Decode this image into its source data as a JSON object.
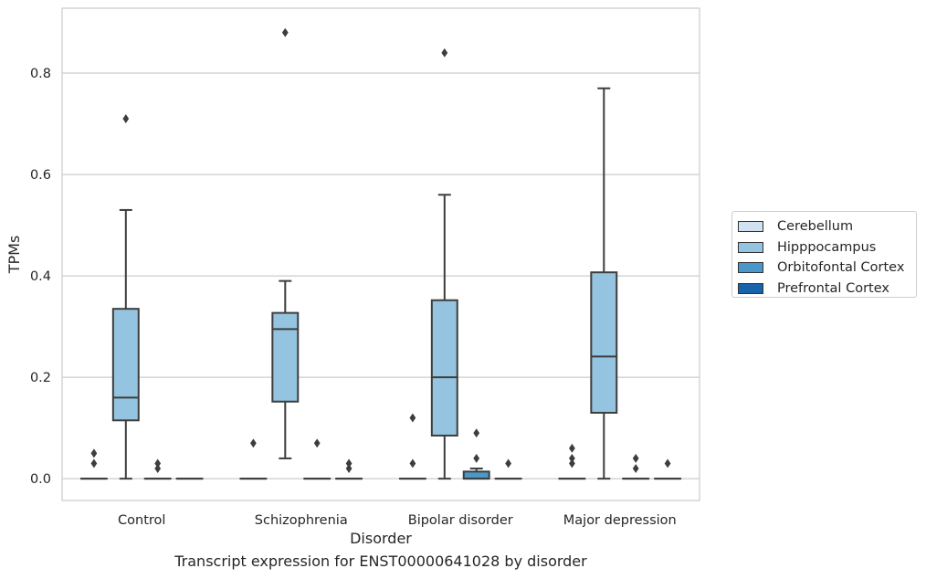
{
  "chart_data": {
    "type": "box",
    "xlabel": "Disorder",
    "ylabel": "TPMs",
    "categories": [
      "Control",
      "Schizophrenia",
      "Bipolar disorder",
      "Major depression"
    ],
    "ylim": [
      -0.043,
      0.928
    ],
    "yticks": [
      0.0,
      0.2,
      0.4,
      0.6,
      0.8
    ],
    "ytick_labels": [
      "0.0",
      "0.2",
      "0.4",
      "0.6",
      "0.8"
    ],
    "grid": "horizontal",
    "legend_position": "right",
    "series": [
      {
        "name": "Cerebellum",
        "color": "#d0e1f2",
        "boxes": [
          {
            "q1": 0,
            "median": 0,
            "q3": 0,
            "whisker_low": 0,
            "whisker_high": 0,
            "outliers": [
              0.05,
              0.03
            ]
          },
          {
            "q1": 0,
            "median": 0,
            "q3": 0,
            "whisker_low": 0,
            "whisker_high": 0,
            "outliers": [
              0.07
            ]
          },
          {
            "q1": 0,
            "median": 0,
            "q3": 0,
            "whisker_low": 0,
            "whisker_high": 0,
            "outliers": [
              0.12,
              0.03
            ]
          },
          {
            "q1": 0,
            "median": 0,
            "q3": 0,
            "whisker_low": 0,
            "whisker_high": 0,
            "outliers": [
              0.06,
              0.04,
              0.03
            ]
          }
        ]
      },
      {
        "name": "Hipppocampus",
        "color": "#94c4df",
        "boxes": [
          {
            "q1": 0.115,
            "median": 0.16,
            "q3": 0.335,
            "whisker_low": 0.0,
            "whisker_high": 0.53,
            "outliers": [
              0.71
            ]
          },
          {
            "q1": 0.152,
            "median": 0.295,
            "q3": 0.327,
            "whisker_low": 0.04,
            "whisker_high": 0.39,
            "outliers": [
              0.88
            ]
          },
          {
            "q1": 0.085,
            "median": 0.2,
            "q3": 0.352,
            "whisker_low": 0.0,
            "whisker_high": 0.56,
            "outliers": [
              0.84
            ]
          },
          {
            "q1": 0.13,
            "median": 0.241,
            "q3": 0.407,
            "whisker_low": 0.0,
            "whisker_high": 0.77,
            "outliers": []
          }
        ]
      },
      {
        "name": "Orbitofontal Cortex",
        "color": "#4a98c9",
        "boxes": [
          {
            "q1": 0,
            "median": 0,
            "q3": 0,
            "whisker_low": 0,
            "whisker_high": 0,
            "outliers": [
              0.03,
              0.02
            ]
          },
          {
            "q1": 0,
            "median": 0,
            "q3": 0,
            "whisker_low": 0,
            "whisker_high": 0,
            "outliers": [
              0.07
            ]
          },
          {
            "q1": 0.0,
            "median": 0.0,
            "q3": 0.014,
            "whisker_low": 0.0,
            "whisker_high": 0.02,
            "outliers": [
              0.09,
              0.04
            ]
          },
          {
            "q1": 0,
            "median": 0,
            "q3": 0,
            "whisker_low": 0,
            "whisker_high": 0,
            "outliers": [
              0.04,
              0.02
            ]
          }
        ]
      },
      {
        "name": "Prefrontal Cortex",
        "color": "#1764ab",
        "boxes": [
          {
            "q1": 0,
            "median": 0,
            "q3": 0,
            "whisker_low": 0,
            "whisker_high": 0,
            "outliers": []
          },
          {
            "q1": 0,
            "median": 0,
            "q3": 0,
            "whisker_low": 0,
            "whisker_high": 0,
            "outliers": [
              0.03,
              0.02
            ]
          },
          {
            "q1": 0,
            "median": 0,
            "q3": 0,
            "whisker_low": 0,
            "whisker_high": 0,
            "outliers": [
              0.03
            ]
          },
          {
            "q1": 0,
            "median": 0,
            "q3": 0,
            "whisker_low": 0,
            "whisker_high": 0,
            "outliers": [
              0.03
            ]
          }
        ]
      }
    ]
  },
  "caption": "Transcript expression for ENST00000641028 by disorder"
}
